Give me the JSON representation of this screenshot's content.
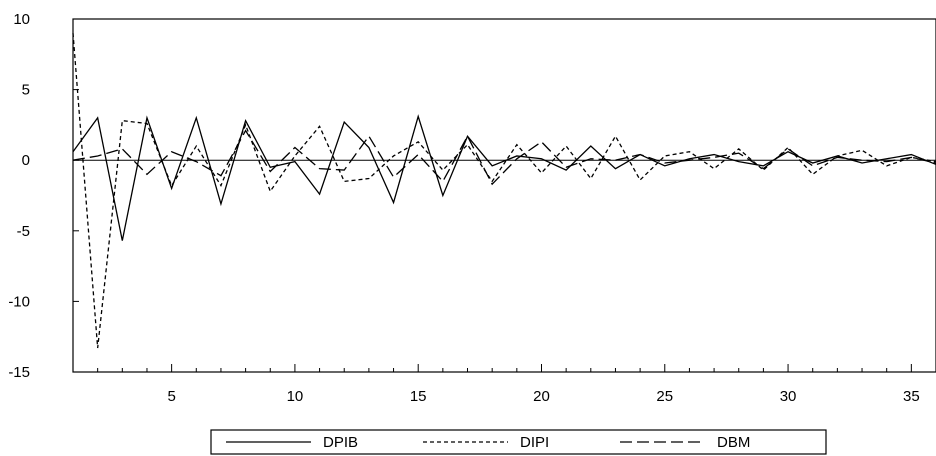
{
  "chart_data": {
    "type": "line",
    "title": "",
    "xlabel": "",
    "ylabel": "",
    "xlim": [
      1,
      36
    ],
    "ylim": [
      -15,
      10
    ],
    "x_ticks": [
      5,
      10,
      15,
      20,
      25,
      30,
      35
    ],
    "x_tick_labels": [
      "5",
      "10",
      "15",
      "20",
      "25",
      "30",
      "35"
    ],
    "y_ticks": [
      10,
      5,
      0,
      -5,
      -10,
      -15
    ],
    "y_tick_labels": [
      "10",
      "5",
      "0",
      "-5",
      "-10",
      "-15"
    ],
    "zero_line": true,
    "grid": false,
    "legend_position": "bottom",
    "x": [
      1,
      2,
      3,
      4,
      5,
      6,
      7,
      8,
      9,
      10,
      11,
      12,
      13,
      14,
      15,
      16,
      17,
      18,
      19,
      20,
      21,
      22,
      23,
      24,
      25,
      26,
      27,
      28,
      29,
      30,
      31,
      32,
      33,
      34,
      35,
      36
    ],
    "series": [
      {
        "name": "DPIB",
        "style": "solid",
        "values": [
          0.6,
          3.0,
          -5.7,
          3.0,
          -2.0,
          3.0,
          -3.1,
          2.8,
          -0.5,
          -0.1,
          -2.4,
          2.7,
          0.9,
          -3.0,
          3.1,
          -2.5,
          1.7,
          -0.4,
          0.3,
          0.1,
          -0.7,
          1.0,
          -0.6,
          0.4,
          -0.4,
          0.1,
          0.4,
          -0.1,
          -0.4,
          0.6,
          -0.2,
          0.3,
          -0.2,
          0.1,
          0.4,
          -0.3
        ]
      },
      {
        "name": "DIPI",
        "style": "short-dash",
        "values": [
          9.0,
          -13.3,
          2.8,
          2.6,
          -1.8,
          1.0,
          -1.8,
          2.5,
          -2.2,
          0.3,
          2.4,
          -1.5,
          -1.3,
          0.3,
          1.3,
          -0.7,
          1.1,
          -1.5,
          1.1,
          -0.9,
          1.0,
          -1.3,
          1.7,
          -1.4,
          0.3,
          0.6,
          -0.6,
          0.8,
          -0.7,
          0.9,
          -1.0,
          0.3,
          0.7,
          -0.4,
          0.2,
          -0.1
        ]
      },
      {
        "name": "DBM",
        "style": "long-dash",
        "values": [
          0.0,
          0.3,
          0.8,
          -1.0,
          0.6,
          -0.1,
          -1.1,
          2.1,
          -0.8,
          0.9,
          -0.6,
          -0.7,
          1.7,
          -1.2,
          0.4,
          -1.5,
          1.7,
          -1.7,
          0.1,
          1.3,
          -0.5,
          0.1,
          0.0,
          0.4,
          -0.2,
          0.0,
          0.2,
          0.5,
          -0.6,
          0.8,
          -0.4,
          0.2,
          0.0,
          -0.1,
          0.2,
          -0.2
        ]
      }
    ]
  }
}
